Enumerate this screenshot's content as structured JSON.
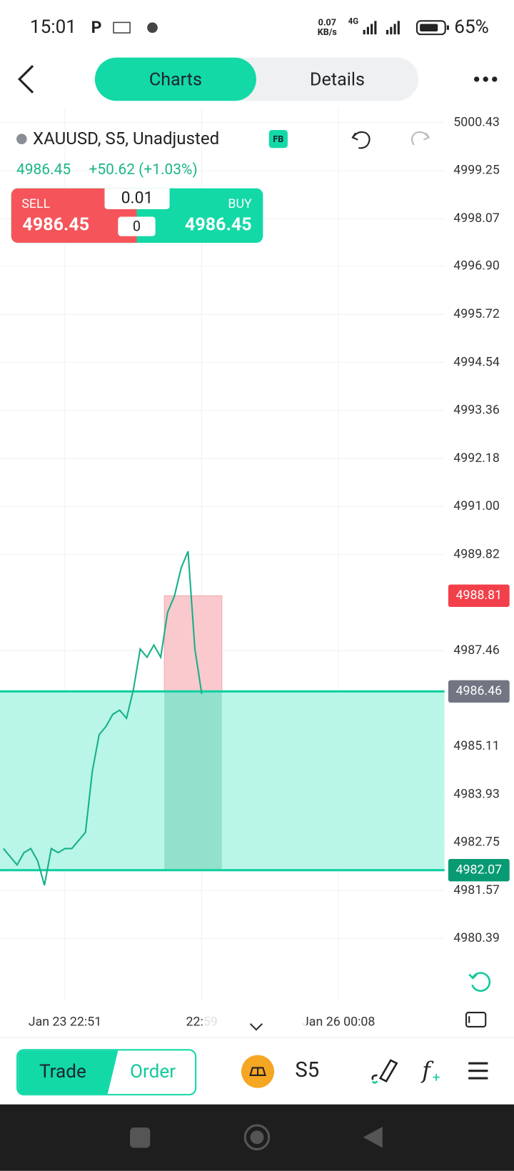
{
  "status_bar": {
    "time": "15:01",
    "network_speed": "0.07",
    "network_unit": "KB/s",
    "network_type": "4G",
    "battery": "65%"
  },
  "tabs": [
    "Charts",
    "Details"
  ],
  "symbol": {
    "title": "XAUUSD, S5, Unadjusted",
    "badge": "FB",
    "price": "4986.45",
    "change": "+50.62 (+1.03%)"
  },
  "trade_panel": {
    "sell_label": "SELL",
    "sell_price": "4986.45",
    "lot": "0.01",
    "position": "0",
    "buy_label": "BUY",
    "buy_price": "4986.45"
  },
  "chart_data": {
    "type": "line",
    "color": "#16b08a",
    "categories": [
      null,
      null,
      null,
      null,
      null,
      null,
      null,
      null,
      null,
      "Jan 23 22:51",
      null,
      null,
      null,
      null,
      null,
      null,
      null,
      null,
      null,
      null,
      null,
      null,
      null,
      null,
      null,
      null,
      null,
      null,
      null,
      "22:59",
      null,
      null,
      null,
      null,
      null,
      null,
      null,
      null,
      null,
      null,
      null,
      null,
      null,
      null,
      null,
      null,
      null,
      null,
      null,
      "Jan 26 00:08",
      null,
      null,
      null,
      null,
      null,
      null,
      null,
      null,
      null,
      null,
      null,
      null,
      null,
      null,
      null
    ],
    "values": [
      4982.6,
      4982.4,
      4982.2,
      4982.5,
      4982.6,
      4982.3,
      4981.7,
      4982.6,
      4982.5,
      4982.6,
      4982.6,
      4982.8,
      4983.0,
      4984.5,
      4985.4,
      4985.6,
      4985.9,
      4986.0,
      4985.8,
      4986.5,
      4987.5,
      4987.3,
      4987.6,
      4987.3,
      4988.4,
      4988.8,
      4989.5,
      4989.9,
      4987.5,
      4986.4,
      null,
      null,
      null,
      null,
      null,
      null,
      null,
      null,
      null,
      null,
      null,
      null,
      null,
      null,
      null,
      null,
      null,
      null,
      null,
      null,
      null,
      null,
      null,
      null,
      null,
      null,
      null,
      null,
      null,
      null,
      null,
      null,
      null,
      null,
      null
    ],
    "ylim": [
      4978.85,
      5000.78
    ],
    "yticks": [
      5000.43,
      4999.25,
      4998.07,
      {
        "value": 4996.9,
        "label": "4996.90"
      },
      4995.72,
      4994.54,
      4993.36,
      4992.18,
      {
        "value": 4991,
        "label": "4991.00"
      },
      4989.82,
      4987.46,
      4985.11,
      4983.93,
      4982.75,
      4981.57,
      4980.39
    ],
    "grid": true,
    "price_labels": [
      {
        "value": 4988.81,
        "color": "#f2404b"
      },
      {
        "value": 4986.46,
        "color": "#717682"
      },
      {
        "value": 4982.07,
        "color": "#079a73"
      }
    ]
  },
  "bottom_bar": {
    "trade": "Trade",
    "order": "Order",
    "interval": "S5"
  }
}
